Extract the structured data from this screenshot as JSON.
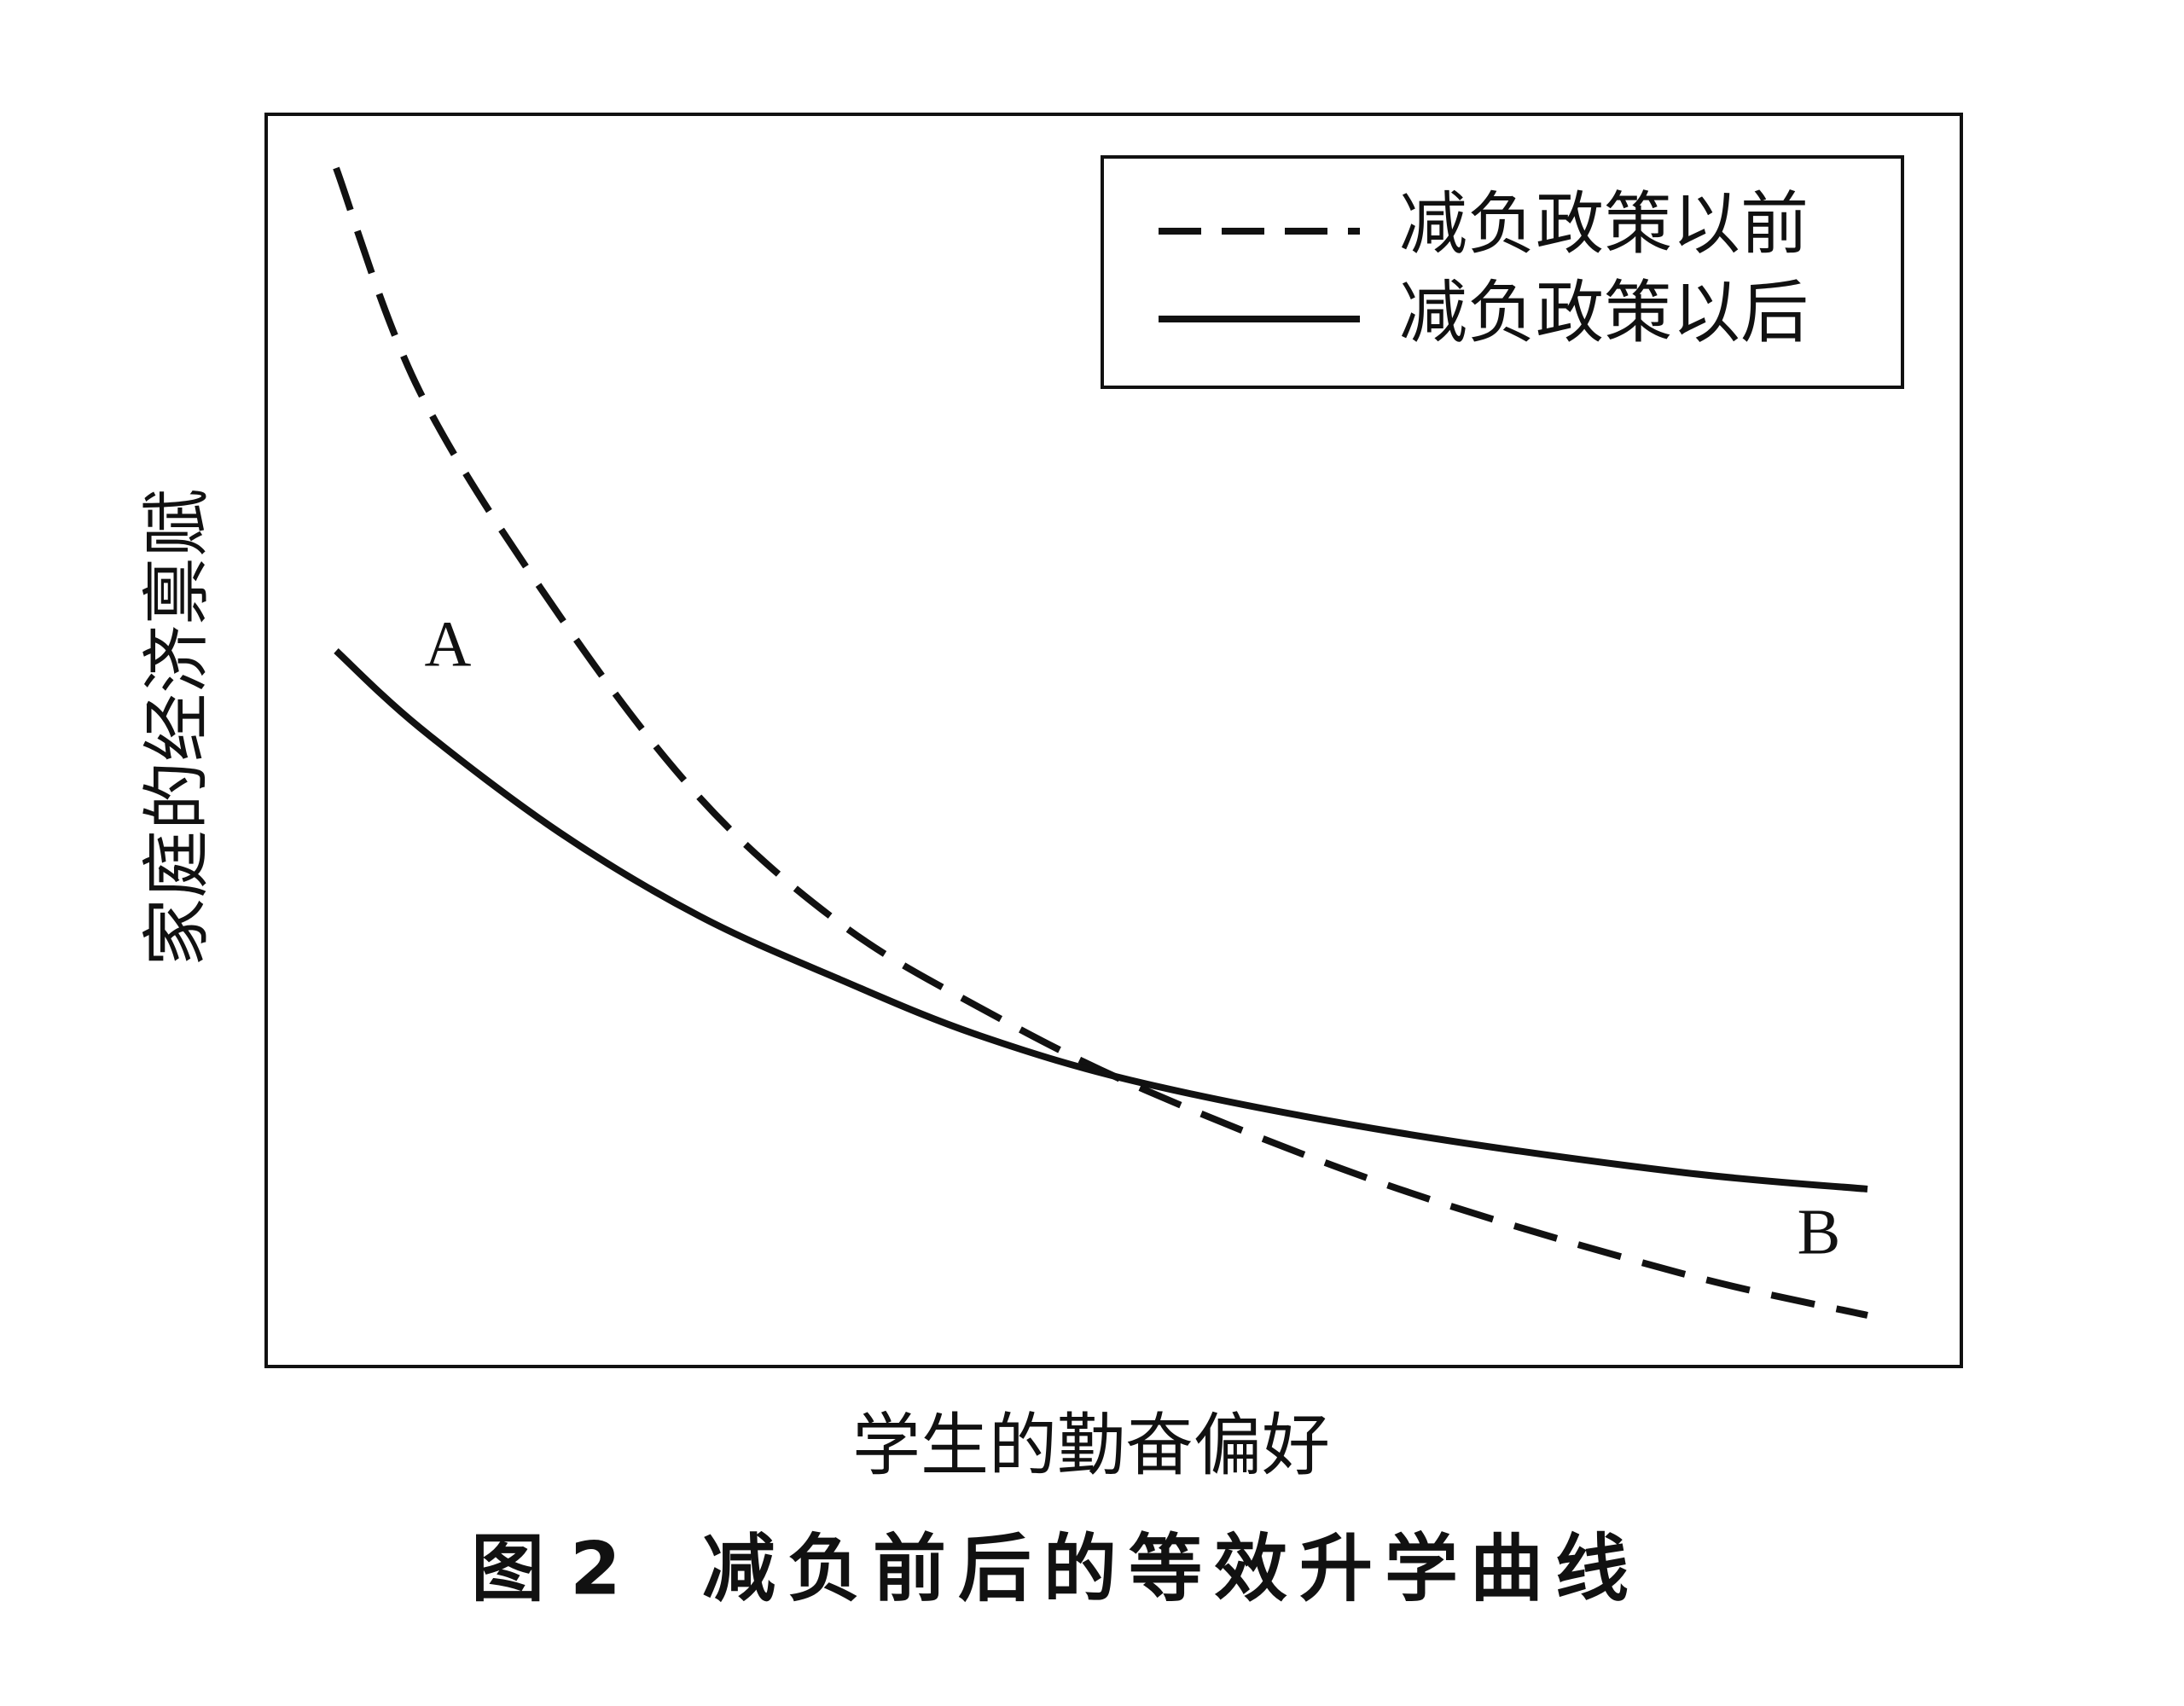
{
  "figure": {
    "legend": [
      "减负政策以前",
      "减负政策以后"
    ],
    "point_labels": [
      "A",
      "B"
    ],
    "y_axis_label": "家庭的经济禀赋",
    "x_axis_label": "学生的勤奋偏好",
    "caption": {
      "label": "图 2",
      "title": "减负前后的等效升学曲线"
    }
  }
}
